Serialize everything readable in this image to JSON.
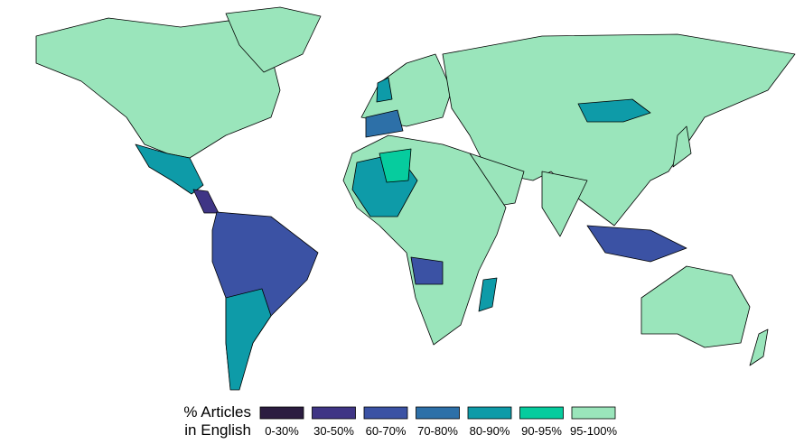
{
  "legend": {
    "title_line1": "% Articles",
    "title_line2": "in English",
    "items": [
      {
        "label": "0-30%",
        "color": "#2b1c40"
      },
      {
        "label": "30-50%",
        "color": "#3f3585"
      },
      {
        "label": "60-70%",
        "color": "#3b52a4"
      },
      {
        "label": "70-80%",
        "color": "#2d70a8"
      },
      {
        "label": "80-90%",
        "color": "#0e9ba8"
      },
      {
        "label": "90-95%",
        "color": "#06cc9e"
      },
      {
        "label": "95-100%",
        "color": "#9ae5bb"
      }
    ]
  }
}
